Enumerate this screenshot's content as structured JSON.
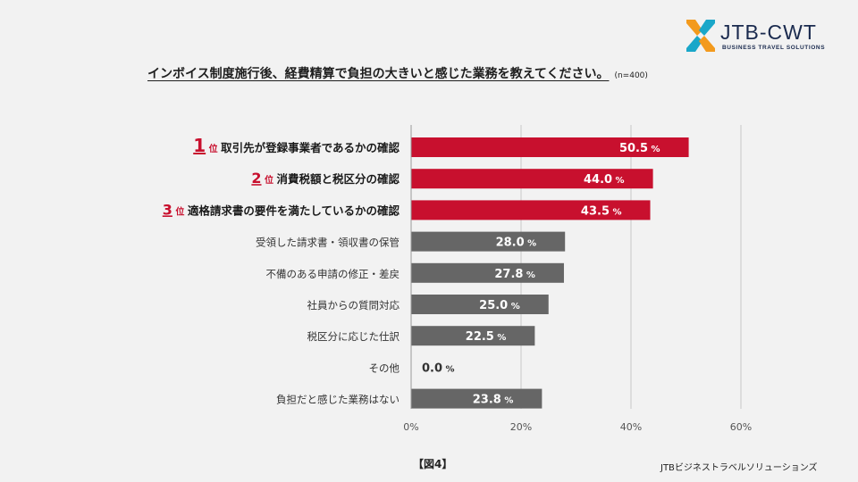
{
  "logo": {
    "name": "JTB-CWT",
    "tagline": "BUSINESS TRAVEL SOLUTIONS"
  },
  "title": {
    "main": "インボイス制度施行後、経費精算で負担の大きいと感じた業務を教えてください。",
    "sample": "(n=400)"
  },
  "figure_label": "【図4】",
  "source": "JTBビジネストラベルソリューションズ",
  "colors": {
    "highlight": "#c8102e",
    "normal": "#666666",
    "grid": "#c8c8c8",
    "text": "#222222"
  },
  "chart_data": {
    "type": "bar",
    "orientation": "horizontal",
    "categories": [
      "取引先が登録事業者であるかの確認",
      "消費税額と税区分の確認",
      "適格請求書の要件を満たしているかの確認",
      "受領した請求書・領収書の保管",
      "不備のある申請の修正・差戻",
      "社員からの質問対応",
      "税区分に応じた仕訳",
      "その他",
      "負担だと感じた業務はない"
    ],
    "values": [
      50.5,
      44.0,
      43.5,
      28.0,
      27.8,
      25.0,
      22.5,
      0.0,
      23.8
    ],
    "value_labels": [
      "50.5",
      "44.0",
      "43.5",
      "28.0",
      "27.8",
      "25.0",
      "22.5",
      "0.0",
      "23.8"
    ],
    "unit": "%",
    "ranks": [
      {
        "number": "1",
        "suffix": "位"
      },
      {
        "number": "2",
        "suffix": "位"
      },
      {
        "number": "3",
        "suffix": "位"
      }
    ],
    "xlim": [
      0,
      60
    ],
    "xticks": [
      "0%",
      "20%",
      "40%",
      "60%"
    ],
    "xtick_values": [
      0,
      20,
      40,
      60
    ],
    "grid": true
  }
}
